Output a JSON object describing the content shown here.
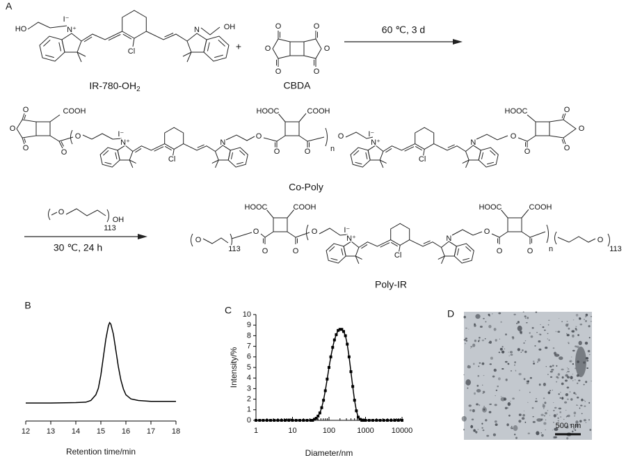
{
  "scheme": {
    "panel_label": "A",
    "ir780": {
      "ho": "HO",
      "i": "I⁻",
      "n1": "N⁺",
      "cl": "Cl",
      "n2": "N",
      "oh": "OH",
      "name": "IR-780-OH",
      "name_sub": "2"
    },
    "plus": "+",
    "cbda": {
      "labels": [
        "O",
        "O",
        "O",
        "O",
        "O",
        "O"
      ],
      "name": "CBDA"
    },
    "step1": "60 ℃, 3 d",
    "co_poly": {
      "labels": [
        "O",
        "O",
        "O",
        "COOH",
        "O",
        "O",
        "O",
        "O",
        "HOOC",
        "COOH",
        "O",
        "n",
        "O",
        "O",
        "O",
        "HOOC",
        "O",
        "O",
        "O"
      ],
      "core1": {
        "i": "I⁻",
        "n1": "N⁺",
        "cl": "Cl",
        "n2": "N"
      },
      "core2": {
        "i": "I⁻",
        "n1": "N⁺",
        "cl": "Cl",
        "n2": "N"
      },
      "name": "Co-Poly"
    },
    "reagent": {
      "labels": [
        "O",
        "OH",
        "113"
      ]
    },
    "step2": "30 ℃, 24 h",
    "poly_ir": {
      "labels": [
        "O",
        "113",
        "O",
        "O",
        "HOOC",
        "COOH",
        "O",
        "O",
        "O",
        "O",
        "HOOC",
        "COOH",
        "O",
        "n",
        "O",
        "113"
      ],
      "core": {
        "i": "I⁻",
        "n1": "N⁺",
        "cl": "Cl",
        "n2": "N"
      },
      "name": "Poly-IR"
    }
  },
  "chart_data": [
    {
      "type": "line",
      "panel_label": "B",
      "x_label": "Retention time/min",
      "x": [
        12,
        13,
        14,
        14.4,
        14.6,
        14.8,
        14.9,
        15,
        15.1,
        15.2,
        15.3,
        15.35,
        15.4,
        15.5,
        15.6,
        15.7,
        15.8,
        15.9,
        16,
        16.2,
        16.5,
        17,
        18
      ],
      "values": [
        0.02,
        0.02,
        0.025,
        0.03,
        0.05,
        0.12,
        0.2,
        0.36,
        0.58,
        0.8,
        0.96,
        1,
        0.98,
        0.86,
        0.66,
        0.46,
        0.3,
        0.19,
        0.12,
        0.07,
        0.05,
        0.04,
        0.04
      ],
      "xlim": [
        12,
        18
      ],
      "xticks": [
        12,
        13,
        14,
        15,
        16,
        17,
        18
      ],
      "ylim": [
        -0.2,
        1.2
      ],
      "color": "#000000"
    },
    {
      "type": "line",
      "panel_label": "C",
      "x_label": "Diameter/nm",
      "y_label": "Intensity/%",
      "x": [
        1,
        1.26,
        1.58,
        2,
        2.51,
        3.16,
        3.98,
        5.01,
        6.31,
        7.94,
        10,
        12.6,
        15.8,
        20,
        25.1,
        31.6,
        35.5,
        39.8,
        44.7,
        50.1,
        56.2,
        63.1,
        70.8,
        79.4,
        89.1,
        100,
        112,
        126,
        141,
        158,
        178,
        200,
        224,
        251,
        282,
        316,
        355,
        398,
        447,
        501,
        562,
        631,
        708,
        794,
        891,
        1000,
        1260,
        1580,
        2000,
        2510,
        3160,
        3980,
        5010,
        6310,
        7940,
        10000
      ],
      "values": [
        0,
        0,
        0,
        0,
        0,
        0,
        0,
        0,
        0,
        0,
        0,
        0,
        0,
        0,
        0,
        0,
        0,
        0.1,
        0.2,
        0.4,
        0.7,
        1.2,
        1.9,
        2.8,
        3.9,
        5.0,
        6.0,
        6.9,
        7.6,
        8.1,
        8.5,
        8.6,
        8.6,
        8.4,
        8.0,
        7.2,
        6.0,
        4.6,
        3.2,
        1.9,
        0.9,
        0.3,
        0.1,
        0,
        0,
        0,
        0,
        0,
        0,
        0,
        0,
        0,
        0,
        0,
        0,
        0
      ],
      "xlim": [
        1,
        10000
      ],
      "xticks": [
        1,
        10,
        100,
        1000,
        10000
      ],
      "xscale": "log",
      "ylim": [
        0,
        10
      ],
      "yticks": [
        0,
        1,
        2,
        3,
        4,
        5,
        6,
        7,
        8,
        9,
        10
      ],
      "markers": "square",
      "color": "#000000"
    }
  ],
  "tem": {
    "panel_label": "D",
    "scale_bar": "500 nm"
  }
}
